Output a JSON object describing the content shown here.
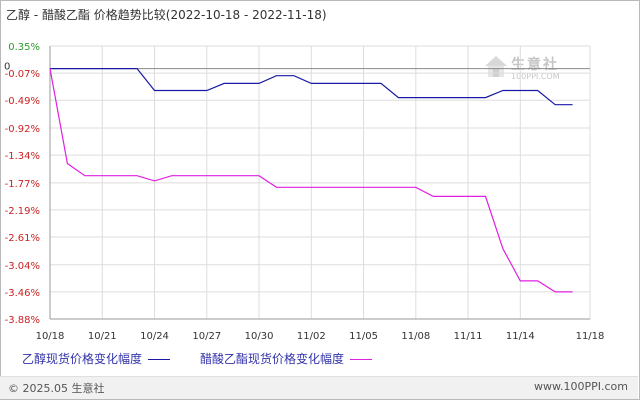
{
  "title": "乙醇 - 醋酸乙酯 价格趋势比较(2022-10-18 - 2022-11-18)",
  "watermark": {
    "brand": "生意社",
    "url": "100PPI.COM"
  },
  "legend": [
    {
      "label": "乙醇现货价格变化幅度",
      "color": "#1a1aa6"
    },
    {
      "label": "醋酸乙酯现货价格变化幅度",
      "color": "#e020e0"
    }
  ],
  "footer": {
    "left": "© 2025.05 生意社",
    "right": "www.100PPI.com"
  },
  "chart_data": {
    "type": "line",
    "title": "乙醇 - 醋酸乙酯 价格趋势比较(2022-10-18 - 2022-11-18)",
    "xlabel": "",
    "ylabel": "",
    "ylim": [
      -3.88,
      0.35
    ],
    "yticks": [
      "0.35%",
      "-0.07%",
      "-0.49%",
      "-0.92%",
      "-1.34%",
      "-1.77%",
      "-2.19%",
      "-2.61%",
      "-3.04%",
      "-3.46%",
      "-3.88%"
    ],
    "ytick_values": [
      0.35,
      -0.07,
      -0.49,
      -0.92,
      -1.34,
      -1.77,
      -2.19,
      -2.61,
      -3.04,
      -3.46,
      -3.88
    ],
    "zero_label": "0",
    "xticks": [
      "10/18",
      "10/21",
      "10/24",
      "10/27",
      "10/30",
      "11/02",
      "11/05",
      "11/08",
      "11/11",
      "11/14",
      "11/18"
    ],
    "xtick_days": [
      0,
      3,
      6,
      9,
      12,
      15,
      18,
      21,
      24,
      27,
      31
    ],
    "grid": true,
    "series": [
      {
        "name": "乙醇现货价格变化幅度",
        "color": "#1a1aa6",
        "points": [
          [
            0,
            0
          ],
          [
            1,
            0
          ],
          [
            2,
            0
          ],
          [
            3,
            0
          ],
          [
            4,
            0
          ],
          [
            5,
            0
          ],
          [
            6,
            -0.34
          ],
          [
            7,
            -0.34
          ],
          [
            8,
            -0.34
          ],
          [
            9,
            -0.34
          ],
          [
            10,
            -0.23
          ],
          [
            11,
            -0.23
          ],
          [
            12,
            -0.23
          ],
          [
            13,
            -0.11
          ],
          [
            14,
            -0.11
          ],
          [
            15,
            -0.23
          ],
          [
            16,
            -0.23
          ],
          [
            17,
            -0.23
          ],
          [
            18,
            -0.23
          ],
          [
            19,
            -0.23
          ],
          [
            20,
            -0.45
          ],
          [
            21,
            -0.45
          ],
          [
            22,
            -0.45
          ],
          [
            23,
            -0.45
          ],
          [
            24,
            -0.45
          ],
          [
            25,
            -0.45
          ],
          [
            26,
            -0.34
          ],
          [
            27,
            -0.34
          ],
          [
            28,
            -0.34
          ],
          [
            29,
            -0.56
          ],
          [
            30,
            -0.56
          ]
        ]
      },
      {
        "name": "醋酸乙酯现货价格变化幅度",
        "color": "#e020e0",
        "points": [
          [
            0,
            0
          ],
          [
            1,
            -1.47
          ],
          [
            2,
            -1.66
          ],
          [
            3,
            -1.66
          ],
          [
            4,
            -1.66
          ],
          [
            5,
            -1.66
          ],
          [
            6,
            -1.74
          ],
          [
            7,
            -1.66
          ],
          [
            8,
            -1.66
          ],
          [
            9,
            -1.66
          ],
          [
            10,
            -1.66
          ],
          [
            11,
            -1.66
          ],
          [
            12,
            -1.66
          ],
          [
            13,
            -1.84
          ],
          [
            14,
            -1.84
          ],
          [
            15,
            -1.84
          ],
          [
            16,
            -1.84
          ],
          [
            17,
            -1.84
          ],
          [
            18,
            -1.84
          ],
          [
            19,
            -1.84
          ],
          [
            20,
            -1.84
          ],
          [
            21,
            -1.84
          ],
          [
            22,
            -1.98
          ],
          [
            23,
            -1.98
          ],
          [
            24,
            -1.98
          ],
          [
            25,
            -1.98
          ],
          [
            26,
            -2.79
          ],
          [
            27,
            -3.29
          ],
          [
            28,
            -3.29
          ],
          [
            29,
            -3.46
          ],
          [
            30,
            -3.46
          ]
        ]
      }
    ]
  }
}
